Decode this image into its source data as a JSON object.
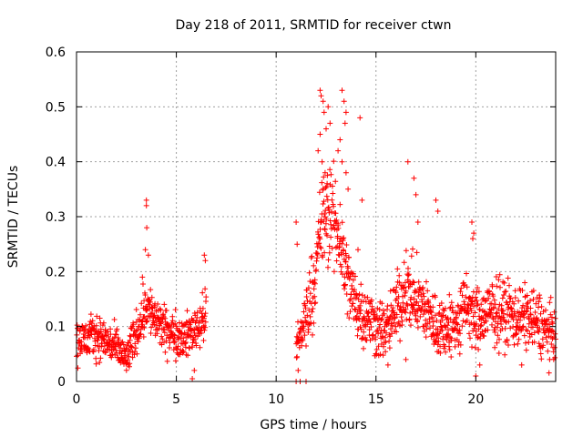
{
  "chart_data": {
    "type": "scatter",
    "title": "Day 218 of 2011, SRMTID for receiver ctwn",
    "xlabel": "GPS time / hours",
    "ylabel": "SRMTID / TECUs",
    "xlim": [
      0,
      24
    ],
    "ylim": [
      0,
      0.6
    ],
    "x_ticks": [
      0,
      5,
      10,
      15,
      20
    ],
    "x_tick_labels": [
      "0",
      "5",
      "10",
      "15",
      "20"
    ],
    "y_ticks": [
      0,
      0.1,
      0.2,
      0.3,
      0.4,
      0.5,
      0.6
    ],
    "y_tick_labels": [
      "0",
      "0.1",
      "0.2",
      "0.3",
      "0.4",
      "0.5",
      "0.6"
    ],
    "grid": true,
    "marker": "plus",
    "color": "#ff0000",
    "series": [
      {
        "name": "SRMTID",
        "segments": [
          {
            "x_start": 0.0,
            "x_end": 6.5,
            "samples_per_hour": 80,
            "profile": [
              [
                0,
                0.07
              ],
              [
                1,
                0.085
              ],
              [
                2,
                0.06
              ],
              [
                2.5,
                0.04
              ],
              [
                3,
                0.09
              ],
              [
                3.5,
                0.14
              ],
              [
                4,
                0.11
              ],
              [
                4.5,
                0.09
              ],
              [
                5,
                0.085
              ],
              [
                5.5,
                0.08
              ],
              [
                6,
                0.1
              ],
              [
                6.5,
                0.12
              ]
            ],
            "spread": 0.045
          },
          {
            "x_start": 11.0,
            "x_end": 24.0,
            "samples_per_hour": 80,
            "profile": [
              [
                11,
                0.06
              ],
              [
                11.5,
                0.12
              ],
              [
                12,
                0.2
              ],
              [
                12.3,
                0.3
              ],
              [
                12.8,
                0.3
              ],
              [
                13.2,
                0.26
              ],
              [
                13.6,
                0.18
              ],
              [
                14,
                0.14
              ],
              [
                14.5,
                0.12
              ],
              [
                15,
                0.1
              ],
              [
                15.5,
                0.09
              ],
              [
                16,
                0.13
              ],
              [
                16.5,
                0.17
              ],
              [
                17,
                0.15
              ],
              [
                17.5,
                0.13
              ],
              [
                18,
                0.1
              ],
              [
                19,
                0.1
              ],
              [
                19.5,
                0.14
              ],
              [
                20,
                0.11
              ],
              [
                21,
                0.13
              ],
              [
                22,
                0.12
              ],
              [
                23,
                0.11
              ],
              [
                24,
                0.08
              ]
            ],
            "spread": 0.06
          }
        ],
        "extremes": [
          [
            3.5,
            0.33
          ],
          [
            3.5,
            0.32
          ],
          [
            3.52,
            0.28
          ],
          [
            3.45,
            0.24
          ],
          [
            3.6,
            0.23
          ],
          [
            3.3,
            0.19
          ],
          [
            5.8,
            0.005
          ],
          [
            5.9,
            0.02
          ],
          [
            6.4,
            0.23
          ],
          [
            6.45,
            0.22
          ],
          [
            11.0,
            0.0
          ],
          [
            11.1,
            0.02
          ],
          [
            11.2,
            0.0
          ],
          [
            11.5,
            0.0
          ],
          [
            11.0,
            0.29
          ],
          [
            11.05,
            0.25
          ],
          [
            12.2,
            0.53
          ],
          [
            12.25,
            0.52
          ],
          [
            12.35,
            0.51
          ],
          [
            12.4,
            0.49
          ],
          [
            12.6,
            0.5
          ],
          [
            12.7,
            0.47
          ],
          [
            12.5,
            0.46
          ],
          [
            12.2,
            0.45
          ],
          [
            12.1,
            0.42
          ],
          [
            12.3,
            0.4
          ],
          [
            12.45,
            0.38
          ],
          [
            12.55,
            0.36
          ],
          [
            13.3,
            0.53
          ],
          [
            13.4,
            0.51
          ],
          [
            13.5,
            0.49
          ],
          [
            13.45,
            0.47
          ],
          [
            13.2,
            0.44
          ],
          [
            13.1,
            0.42
          ],
          [
            13.3,
            0.4
          ],
          [
            13.5,
            0.38
          ],
          [
            13.6,
            0.35
          ],
          [
            14.2,
            0.48
          ],
          [
            14.3,
            0.33
          ],
          [
            14.1,
            0.24
          ],
          [
            16.6,
            0.4
          ],
          [
            16.9,
            0.37
          ],
          [
            17.0,
            0.34
          ],
          [
            17.1,
            0.29
          ],
          [
            18.0,
            0.33
          ],
          [
            18.1,
            0.31
          ],
          [
            19.8,
            0.29
          ],
          [
            19.9,
            0.27
          ],
          [
            19.85,
            0.26
          ],
          [
            20.0,
            0.01
          ],
          [
            20.2,
            0.03
          ],
          [
            15.6,
            0.03
          ],
          [
            16.5,
            0.04
          ],
          [
            19.2,
            0.05
          ],
          [
            22.3,
            0.03
          ],
          [
            23.7,
            0.04
          ]
        ]
      }
    ]
  }
}
